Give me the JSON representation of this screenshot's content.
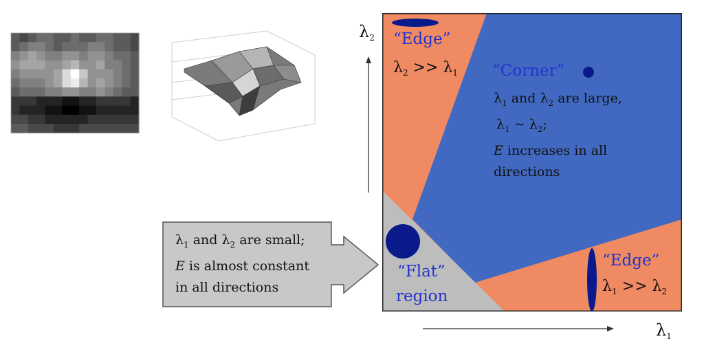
{
  "colors": {
    "edge_region": "#ef8a62",
    "corner_region": "#4169c1",
    "flat_region": "#bdbdbd",
    "ellipse": "#0b1a8a",
    "callout_fill": "#c8c8c8",
    "label_blue": "#2233cc",
    "text_dark": "#111111"
  },
  "axes": {
    "x_symbol": "λ",
    "x_sub": "1",
    "y_symbol": "λ",
    "y_sub": "2"
  },
  "regions": {
    "edge_top": {
      "title": "“Edge”",
      "cond_a": "λ",
      "cond_a_sub": "2",
      "cond_op": " >> ",
      "cond_b": "λ",
      "cond_b_sub": "1"
    },
    "corner": {
      "title": "“Corner”",
      "line1_a": "λ",
      "line1_a_sub": "1",
      "line1_mid": " and ",
      "line1_b": "λ",
      "line1_b_sub": "2",
      "line1_end": " are large,",
      "line2_a": "λ",
      "line2_a_sub": "1",
      "line2_mid": " ~ ",
      "line2_b": "λ",
      "line2_b_sub": "2",
      "line2_end": ";",
      "line3_e": "E",
      "line3_rest": " increases in all",
      "line4": "directions"
    },
    "edge_bottom": {
      "title": "“Edge”",
      "cond_a": "λ",
      "cond_a_sub": "1",
      "cond_op": " >> ",
      "cond_b": "λ",
      "cond_b_sub": "2"
    },
    "flat": {
      "title": "“Flat”",
      "title2": "region"
    }
  },
  "callout": {
    "line1_a": "λ",
    "line1_a_sub": "1",
    "line1_mid": " and ",
    "line1_b": "λ",
    "line1_b_sub": "2",
    "line1_end": " are small;",
    "line2_e": "E",
    "line2_rest": " is almost constant",
    "line3": "in all directions"
  },
  "thumbnails": {
    "heatmap_icon": "grayscale-patch-icon",
    "surface_icon": "3d-surface-plot-icon"
  }
}
